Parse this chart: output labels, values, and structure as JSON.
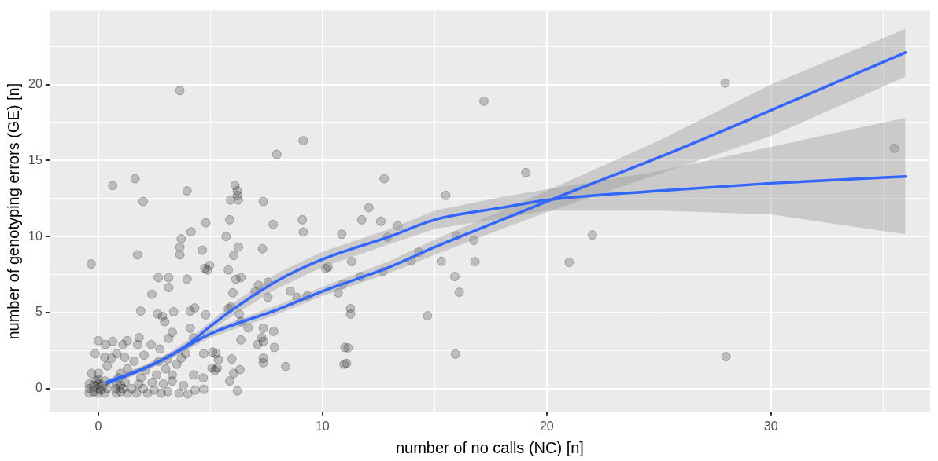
{
  "chart_data": {
    "type": "scatter",
    "xlabel": "number of no calls (NC) [n]",
    "ylabel": "number of genotyping errors (GE) [n]",
    "xlim": [
      -2.18,
      37.1
    ],
    "ylim": [
      -1.55,
      24.85
    ],
    "xticks": [
      0,
      {
        "value": 5,
        "label": null
      },
      10,
      {
        "value": 15,
        "label": null
      },
      20,
      {
        "value": 25,
        "label": null
      },
      30,
      {
        "value": 35,
        "label": null
      }
    ],
    "yticks": [
      0,
      {
        "value": 2.5,
        "label": null
      },
      5,
      {
        "value": 7.5,
        "label": null
      },
      10,
      {
        "value": 12.5,
        "label": null
      },
      15,
      {
        "value": 17.5,
        "label": null
      },
      20,
      {
        "value": 22.5,
        "label": null
      }
    ],
    "grid": true,
    "legend": false,
    "series": [
      {
        "type": "scatter",
        "color": "#000000",
        "marker": "circle",
        "x": [
          3.64,
          27.96,
          28.0,
          35.5,
          17.2,
          12.75,
          19.07,
          15.5,
          12.07,
          9.14,
          7.96,
          0.64,
          1.64,
          2.0,
          3.96,
          6.1,
          6.2,
          6.2,
          5.9,
          6.25,
          7.36,
          -0.32,
          1.75,
          4.8,
          5.86,
          7.8,
          9.1,
          9.14,
          4.14,
          3.7,
          3.64,
          3.64,
          5.7,
          6.25,
          6.04,
          7.32,
          4.64,
          4.75,
          4.96,
          4.86,
          5.8,
          6.14,
          6.36,
          6.0,
          2.68,
          3.14,
          3.14,
          3.96,
          2.39,
          1.89,
          2.64,
          2.86,
          2.96,
          3.36,
          4.1,
          4.3,
          4.79,
          4.1,
          3.3,
          3.14,
          1.82,
          0,
          0.32,
          0.64,
          1.1,
          1.29,
          -0.14,
          0.29,
          0.82,
          1.18,
          1.75,
          2.36,
          2.04,
          2.75,
          3.1,
          3.7,
          3.9,
          4.7,
          5.1,
          5.25,
          5.36,
          5.96,
          6.36,
          5.3,
          6.32,
          6.04,
          5.86,
          6.2,
          8.36,
          7.36,
          7.36,
          7.86,
          7.82,
          7.36,
          7.29,
          7.36,
          7.1,
          6.68,
          6.36,
          6.29,
          5.8,
          5.9,
          7.0,
          7.14,
          7.57,
          7.57,
          8.57,
          8.86,
          9.32,
          10.14,
          10.25,
          10.7,
          10.86,
          11.0,
          10.96,
          4.25,
          5.2,
          3.3,
          4.25,
          4.68,
          4.7,
          4.32,
          4.0,
          5.07,
          11.75,
          12.6,
          13.36,
          12.9,
          11.3,
          11.7,
          10.9,
          12.7,
          13.96,
          14.3,
          15.3,
          15.96,
          16.75,
          16.8,
          15.9,
          16.1,
          11.25,
          11.25,
          14.68,
          11.14,
          11.07,
          15.93,
          21.0,
          22.04,
          -0.4,
          -0.4,
          -0.4,
          -0.3,
          -0.2,
          -0.2,
          -0.1,
          0,
          0,
          0,
          0,
          0,
          0.1,
          0.2,
          0.3,
          0.3,
          0.4,
          0.4,
          0.8,
          0.8,
          0.8,
          0.9,
          1,
          1,
          1,
          1.1,
          1.2,
          1.3,
          1.3,
          1.5,
          1.7,
          1.8,
          1.9,
          2,
          2.1,
          2.2,
          2.4,
          2.5,
          2.6,
          2.8,
          2.9,
          3,
          3.1,
          3.3,
          3.5,
          3.6,
          2.7,
          1.6,
          0.6,
          3.8
        ],
        "values": [
          19.6,
          20.1,
          2.1,
          15.8,
          18.9,
          13.8,
          14.2,
          12.7,
          11.9,
          16.3,
          15.4,
          13.35,
          13.8,
          12.3,
          13.0,
          13.35,
          13.0,
          12.7,
          12.4,
          12.4,
          12.3,
          8.2,
          8.8,
          10.9,
          11.1,
          10.8,
          11.1,
          10.3,
          10.3,
          9.85,
          9.3,
          8.8,
          10.0,
          9.3,
          8.76,
          9.2,
          9.1,
          7.9,
          8.1,
          7.8,
          7.8,
          7.2,
          7.3,
          6.3,
          7.3,
          7.3,
          6.65,
          7.2,
          6.2,
          5.1,
          4.9,
          4.75,
          4.4,
          5.05,
          5.1,
          5.3,
          4.85,
          3.97,
          3.7,
          3.3,
          3.35,
          3.15,
          2.9,
          3.1,
          2.9,
          3.15,
          2.3,
          2.05,
          2.3,
          2.05,
          2.9,
          2.9,
          2.2,
          2.6,
          1.95,
          2.0,
          2.3,
          2.3,
          2.4,
          2.3,
          1.9,
          1.95,
          3.2,
          1.35,
          1.25,
          1.0,
          0.5,
          -0.15,
          1.45,
          2.0,
          1.7,
          2.7,
          3.76,
          3.97,
          3.35,
          3.1,
          2.9,
          4.0,
          4.4,
          4.9,
          5.26,
          5.36,
          6.4,
          6.8,
          7.0,
          6.0,
          6.4,
          6.0,
          6.1,
          7.9,
          8.0,
          6.3,
          10.15,
          2.7,
          1.6,
          3.35,
          1.2,
          0.9,
          0.9,
          0.7,
          -0.05,
          -0.1,
          -0.35,
          1.35,
          11.1,
          11.0,
          10.7,
          9.95,
          8.35,
          7.37,
          6.85,
          7.7,
          8.4,
          8.97,
          8.37,
          10.05,
          9.75,
          8.35,
          7.37,
          6.34,
          5.26,
          4.9,
          4.79,
          2.68,
          1.65,
          2.27,
          8.3,
          10.1,
          -0.3,
          0,
          0.3,
          1.0,
          -0.2,
          0.2,
          0.5,
          -0.3,
          0,
          0.3,
          0.6,
          1.0,
          -0.1,
          0.2,
          -0.3,
          0.5,
          0,
          1.5,
          -0.3,
          0,
          0.3,
          0.7,
          -0.2,
          0.2,
          1.0,
          0,
          0.4,
          -0.3,
          1.3,
          0,
          -0.3,
          0.3,
          0.7,
          0,
          1.2,
          -0.3,
          0.4,
          -0.1,
          0.9,
          -0.3,
          0.3,
          1.3,
          -0.2,
          0.5,
          1.6,
          -0.3,
          1.8,
          1.8,
          2.0,
          0.2
        ]
      },
      {
        "type": "line",
        "color": "#3366ff",
        "marker": "none",
        "x": [
          0.4,
          2,
          3,
          5,
          8,
          10,
          13,
          15,
          18,
          20,
          25,
          30,
          36
        ],
        "values": [
          0.35,
          1.3,
          2.0,
          3.6,
          5.2,
          6.4,
          8.0,
          9.3,
          11.1,
          12.3,
          15.2,
          18.3,
          22.1
        ],
        "lower": [
          0.15,
          1.1,
          1.8,
          3.35,
          4.9,
          6.1,
          7.6,
          8.8,
          10.5,
          11.6,
          14.1,
          16.6,
          20.5
        ],
        "upper": [
          0.55,
          1.5,
          2.2,
          3.85,
          5.5,
          6.7,
          8.4,
          9.8,
          11.7,
          13.0,
          16.3,
          20.0,
          23.66
        ]
      },
      {
        "type": "line",
        "color": "#3366ff",
        "marker": "none",
        "x": [
          0.4,
          2,
          3,
          4,
          5,
          6,
          8,
          10,
          13,
          15,
          18,
          20,
          25,
          30,
          36
        ],
        "values": [
          0.45,
          1.3,
          2.0,
          2.9,
          4.1,
          5.2,
          7.1,
          8.5,
          10.0,
          11.1,
          11.9,
          12.4,
          13.0,
          13.5,
          13.95
        ],
        "lower": [
          0.25,
          1.1,
          1.8,
          2.6,
          3.8,
          4.8,
          6.6,
          8.0,
          9.5,
          10.5,
          11.2,
          11.7,
          11.7,
          11.45,
          10.15
        ],
        "upper": [
          0.65,
          1.5,
          2.2,
          3.2,
          4.4,
          5.6,
          7.6,
          9.0,
          10.5,
          11.7,
          12.6,
          13.1,
          14.3,
          15.9,
          17.8
        ]
      }
    ]
  }
}
